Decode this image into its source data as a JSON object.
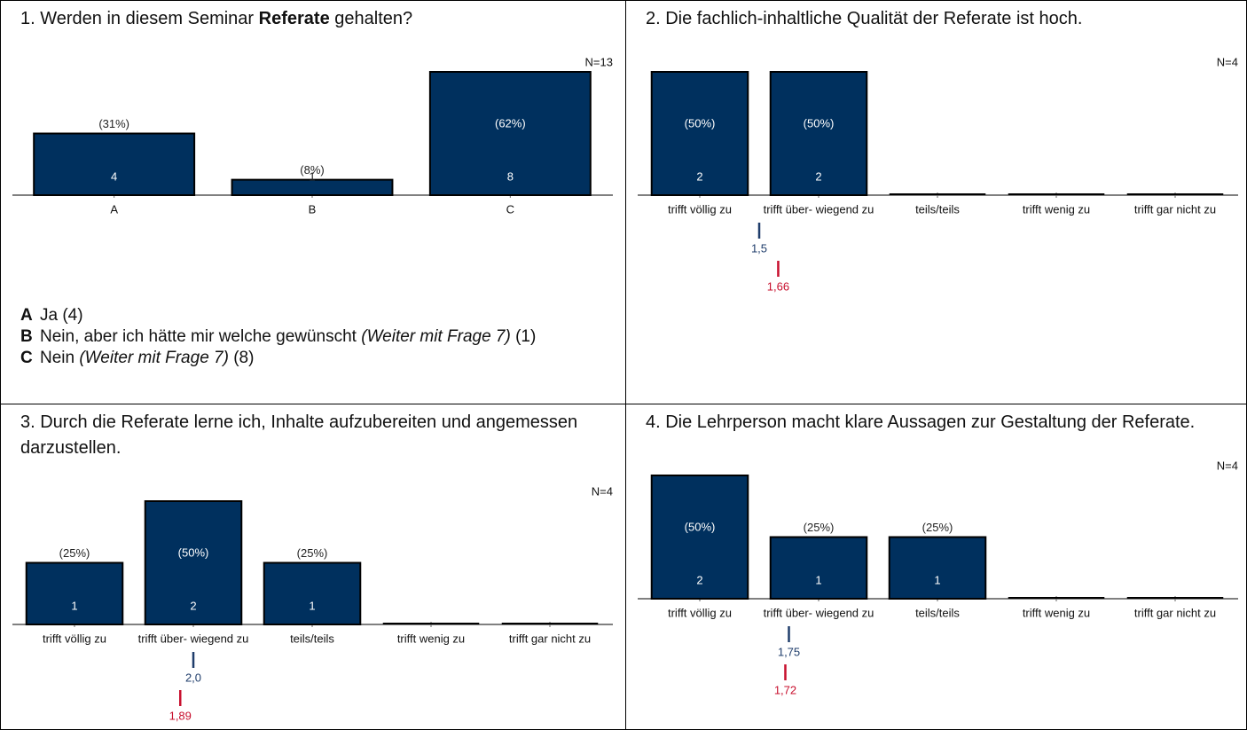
{
  "chart_data": [
    {
      "type": "bar",
      "title": [
        "1. Werden in diesem Seminar ",
        "Referate",
        " gehalten?"
      ],
      "n_label": "N=13",
      "categories": [
        "A",
        "B",
        "C"
      ],
      "values": [
        4,
        1,
        8
      ],
      "percent_labels": [
        "(31%)",
        "(8%)",
        "(62%)"
      ],
      "color": "#00305e",
      "ylim": [
        0,
        8
      ],
      "answers": [
        {
          "key": "A",
          "text": "Ja (4)"
        },
        {
          "key": "B",
          "text": "Nein, aber ich hätte mir welche gewünscht",
          "note": "(Weiter mit Frage 7)",
          "count": "(1)"
        },
        {
          "key": "C",
          "text": "Nein",
          "note": "(Weiter mit Frage 7)",
          "count": "(8)"
        }
      ]
    },
    {
      "type": "bar",
      "title": "2. Die fachlich-inhaltliche Qualität der Referate ist hoch.",
      "n_label": "N=4",
      "categories": [
        "trifft völlig zu",
        "trifft über- wiegend zu",
        "teils/teils",
        "trifft wenig zu",
        "trifft gar nicht zu"
      ],
      "values": [
        2,
        2,
        0,
        0,
        0
      ],
      "percent_labels": [
        "(50%)",
        "(50%)",
        null,
        null,
        null
      ],
      "color": "#00305e",
      "ylim": [
        0,
        2
      ],
      "means": [
        {
          "value": 1.5,
          "label": "1,5",
          "color": "#1f3d6b"
        },
        {
          "value": 1.66,
          "label": "1,66",
          "color": "#c8102e"
        }
      ]
    },
    {
      "type": "bar",
      "title": "3. Durch die Referate lerne ich, Inhalte aufzubereiten und angemessen darzustellen.",
      "n_label": "N=4",
      "categories": [
        "trifft völlig zu",
        "trifft über- wiegend zu",
        "teils/teils",
        "trifft wenig zu",
        "trifft gar nicht zu"
      ],
      "values": [
        1,
        2,
        1,
        0,
        0
      ],
      "percent_labels": [
        "(25%)",
        "(50%)",
        "(25%)",
        null,
        null
      ],
      "color": "#00305e",
      "ylim": [
        0,
        2
      ],
      "means": [
        {
          "value": 2.0,
          "label": "2,0",
          "color": "#1f3d6b"
        },
        {
          "value": 1.89,
          "label": "1,89",
          "color": "#c8102e"
        }
      ]
    },
    {
      "type": "bar",
      "title": "4. Die Lehrperson macht klare Aussagen zur Gestaltung der Referate.",
      "n_label": "N=4",
      "categories": [
        "trifft völlig zu",
        "trifft über- wiegend zu",
        "teils/teils",
        "trifft wenig zu",
        "trifft gar nicht zu"
      ],
      "values": [
        2,
        1,
        1,
        0,
        0
      ],
      "percent_labels": [
        "(50%)",
        "(25%)",
        "(25%)",
        null,
        null
      ],
      "color": "#00305e",
      "ylim": [
        0,
        2
      ],
      "means": [
        {
          "value": 1.75,
          "label": "1,75",
          "color": "#1f3d6b"
        },
        {
          "value": 1.72,
          "label": "1,72",
          "color": "#c8102e"
        }
      ]
    }
  ]
}
